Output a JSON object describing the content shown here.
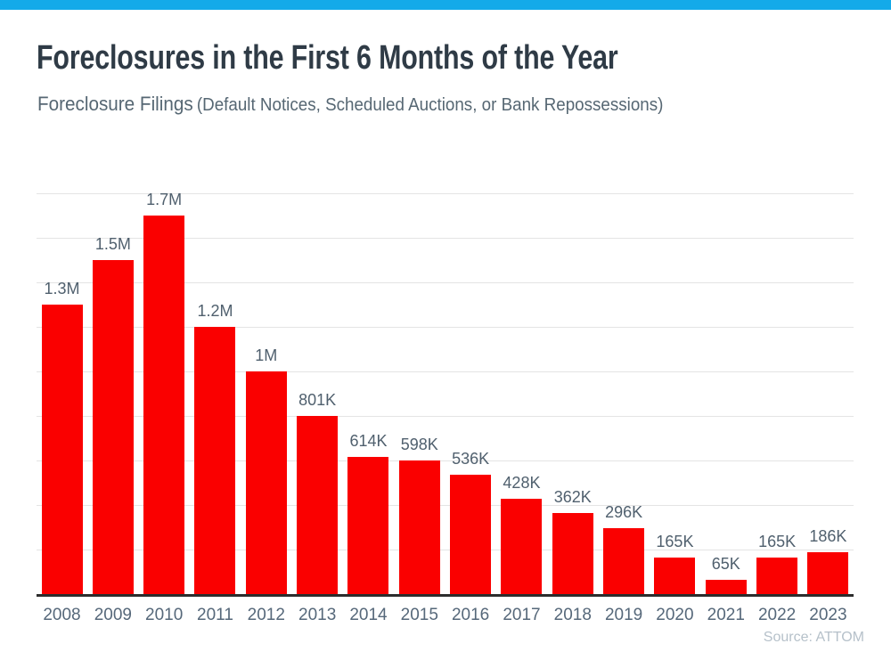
{
  "page": {
    "topbar_color": "#14AAE9",
    "background_color": "#FFFFFF"
  },
  "header": {
    "title": "Foreclosures in the First 6 Months of the Year",
    "subtitle_main": "Foreclosure Filings",
    "subtitle_note": "(Default Notices, Scheduled Auctions, or Bank Repossessions)"
  },
  "chart_data": {
    "type": "bar",
    "title": "Foreclosures in the First 6 Months of the Year",
    "subtitle": "Foreclosure Filings (Default Notices, Scheduled Auctions, or Bank Repossessions)",
    "categories": [
      "2008",
      "2009",
      "2010",
      "2011",
      "2012",
      "2013",
      "2014",
      "2015",
      "2016",
      "2017",
      "2018",
      "2019",
      "2020",
      "2021",
      "2022",
      "2023"
    ],
    "values": [
      1300000,
      1500000,
      1700000,
      1200000,
      1000000,
      801000,
      614000,
      598000,
      536000,
      428000,
      362000,
      296000,
      165000,
      65000,
      165000,
      186000
    ],
    "value_labels": [
      "1.3M",
      "1.5M",
      "1.7M",
      "1.2M",
      "1M",
      "801K",
      "614K",
      "598K",
      "536K",
      "428K",
      "362K",
      "296K",
      "165K",
      "65K",
      "165K",
      "186K"
    ],
    "xlabel": "",
    "ylabel": "",
    "ylim": [
      0,
      1800000
    ],
    "gridline_step": 200000,
    "grid": "horizontal",
    "legend": "none",
    "bar_color": "#FA0000",
    "label_color": "#50606E",
    "axis_line_color": "#2D2D2D",
    "gridline_color": "#E4E4E4"
  },
  "footer": {
    "source": "Source: ATTOM"
  }
}
